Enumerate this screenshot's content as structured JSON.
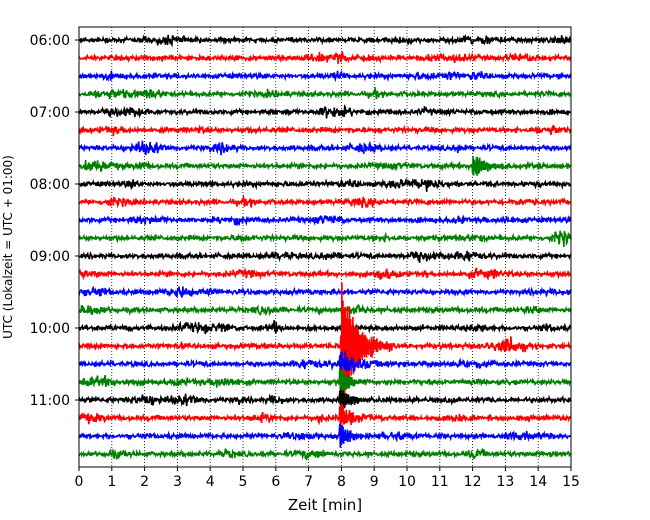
{
  "chart_data": {
    "type": "line",
    "subtype": "helicorder",
    "xlabel": "Zeit  [min]",
    "ylabel": "UTC (Lokalzeit = UTC + 01:00)",
    "xlim": [
      0,
      15
    ],
    "x_ticks": [
      "0",
      "1",
      "2",
      "3",
      "4",
      "5",
      "6",
      "7",
      "8",
      "9",
      "10",
      "11",
      "12",
      "13",
      "14",
      "15"
    ],
    "y_ticks": [
      "06:00",
      "07:00",
      "08:00",
      "09:00",
      "10:00",
      "11:00"
    ],
    "y_tick_rows": [
      0,
      4,
      8,
      12,
      16,
      20
    ],
    "row_interval_minutes": 15,
    "start_time": "06:00",
    "row_colors": [
      "#000000",
      "#ff0000",
      "#0000ff",
      "#008000"
    ],
    "vertical_grid": "dotted",
    "events": [
      {
        "row_start": 7,
        "row_end": 8,
        "minute": 12.0,
        "color": "#008000",
        "label": ""
      },
      {
        "row_start": 17,
        "row_end": 23,
        "minute": 8.0,
        "color": "#ff0000",
        "label": ""
      }
    ],
    "rows": [
      {
        "time": "06:00"
      },
      {
        "time": "06:15"
      },
      {
        "time": "06:30"
      },
      {
        "time": "06:45"
      },
      {
        "time": "07:00"
      },
      {
        "time": "07:15"
      },
      {
        "time": "07:30"
      },
      {
        "time": "07:45"
      },
      {
        "time": "08:00"
      },
      {
        "time": "08:15"
      },
      {
        "time": "08:30"
      },
      {
        "time": "08:45"
      },
      {
        "time": "09:00"
      },
      {
        "time": "09:15"
      },
      {
        "time": "09:30"
      },
      {
        "time": "09:45"
      },
      {
        "time": "10:00"
      },
      {
        "time": "10:15"
      },
      {
        "time": "10:30"
      },
      {
        "time": "10:45"
      },
      {
        "time": "11:00"
      },
      {
        "time": "11:15"
      },
      {
        "time": "11:30"
      },
      {
        "time": "11:45"
      }
    ]
  }
}
